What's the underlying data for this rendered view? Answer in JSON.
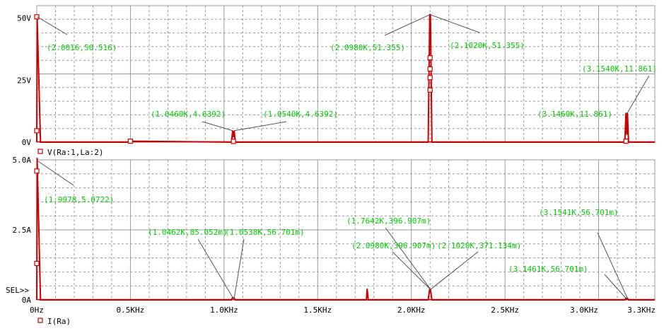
{
  "colors": {
    "trace": "#cc0000",
    "grid": "#999999",
    "annotation_text": "#00cc00",
    "annotation_line": "#555555",
    "background": "#ffffff",
    "text": "#000000"
  },
  "x_axis": {
    "ticks": [
      {
        "value": 0,
        "label": "0Hz"
      },
      {
        "value": 500,
        "label": "0.5KHz"
      },
      {
        "value": 1000,
        "label": "1.0KHz"
      },
      {
        "value": 1500,
        "label": "1.5KHz"
      },
      {
        "value": 2000,
        "label": "2.0KHz"
      },
      {
        "value": 2500,
        "label": "2.5KHz"
      },
      {
        "value": 3000,
        "label": "3.0KHz"
      },
      {
        "value": 3250,
        "label": "3.3KHz"
      }
    ]
  },
  "selection_marker": "SEL>>",
  "chart_data": [
    {
      "type": "line",
      "legend": "V(Ra:1,La:2)",
      "xlim": [
        0,
        3300
      ],
      "ylim": [
        0,
        55
      ],
      "y_ticks": [
        {
          "value": 0,
          "label": "0V"
        },
        {
          "value": 25,
          "label": "25V"
        },
        {
          "value": 50,
          "label": "50V"
        }
      ],
      "series": [
        {
          "name": "V(Ra:1,La:2)",
          "x": [
            0,
            2,
            20,
            480,
            505,
            1040,
            1046,
            1050,
            1054,
            1060,
            2090,
            2098,
            2100,
            2102,
            2110,
            3140,
            3146,
            3150,
            3154,
            3160,
            3300
          ],
          "y": [
            0,
            50.516,
            0,
            0,
            0.4,
            0,
            4.6392,
            2.0,
            4.6392,
            0,
            0,
            51.355,
            51.355,
            51.355,
            0,
            0,
            11.861,
            3.0,
            11.861,
            0,
            0
          ]
        }
      ],
      "markers": [
        {
          "x": 0,
          "y": 50.516
        },
        {
          "x": 0,
          "y": 4.6
        },
        {
          "x": 500,
          "y": 0.4
        },
        {
          "x": 1050,
          "y": 0.3
        },
        {
          "x": 2100,
          "y": 34.0
        },
        {
          "x": 2100,
          "y": 29.5
        },
        {
          "x": 2100,
          "y": 26.0
        },
        {
          "x": 2100,
          "y": 21.0
        },
        {
          "x": 3146,
          "y": 0.4
        }
      ],
      "annotations": [
        {
          "text": "(2.0016,50.516)",
          "x": 2,
          "y": 50.516
        },
        {
          "text": "(2.0980K,51.355)",
          "x": 2098,
          "y": 51.355
        },
        {
          "text": "(2.1020K,51.355)",
          "x": 2102,
          "y": 51.355
        },
        {
          "text": "(1.0460K,4.6392)",
          "x": 1046,
          "y": 4.6392
        },
        {
          "text": "(1.0540K,4.6392)",
          "x": 1054,
          "y": 4.6392
        },
        {
          "text": "(3.1540K,11.861)",
          "x": 3154,
          "y": 11.861
        },
        {
          "text": "(3.1460K,11.861)",
          "x": 3146,
          "y": 11.861
        }
      ]
    },
    {
      "type": "line",
      "legend": "I(Ra)",
      "xlim": [
        0,
        3300
      ],
      "ylim": [
        0,
        5.0
      ],
      "y_ticks": [
        {
          "value": 0,
          "label": "0A"
        },
        {
          "value": 2.5,
          "label": "2.5A"
        },
        {
          "value": 5.0,
          "label": "5.0A"
        }
      ],
      "series": [
        {
          "name": "I(Ra)",
          "x": [
            0,
            2,
            20,
            1040,
            1046,
            1054,
            1060,
            1760,
            1764,
            1770,
            2090,
            2098,
            2100,
            2102,
            2110,
            3140,
            3146,
            3154,
            3160,
            3300
          ],
          "y": [
            0,
            5.0722,
            0,
            0,
            0.085052,
            0.056701,
            0,
            0,
            0.396907,
            0,
            0,
            0.396907,
            0.3,
            0.371134,
            0,
            0,
            0.056701,
            0.056701,
            0,
            0
          ]
        }
      ],
      "markers": [
        {
          "x": 0,
          "y": 4.6
        },
        {
          "x": 0,
          "y": 1.3
        }
      ],
      "annotations": [
        {
          "text": "(1.9978,5.0722)",
          "x": 2,
          "y": 5.0722
        },
        {
          "text": "(1.0462K,85.052m)",
          "x": 1046,
          "y": 0.085
        },
        {
          "text": "(1.0538K,56.701m)",
          "x": 1054,
          "y": 0.057
        },
        {
          "text": "(1.7642K,396.907m)",
          "x": 2100,
          "y": 0.397
        },
        {
          "text": "(2.0980K,396.907m)",
          "x": 2098,
          "y": 0.397
        },
        {
          "text": "(2.1020K,371.134m)",
          "x": 2102,
          "y": 0.371
        },
        {
          "text": "(3.1541K,56.701m)",
          "x": 3154,
          "y": 0.057
        },
        {
          "text": "(3.1461K,56.701m)",
          "x": 3146,
          "y": 0.057
        }
      ]
    }
  ]
}
